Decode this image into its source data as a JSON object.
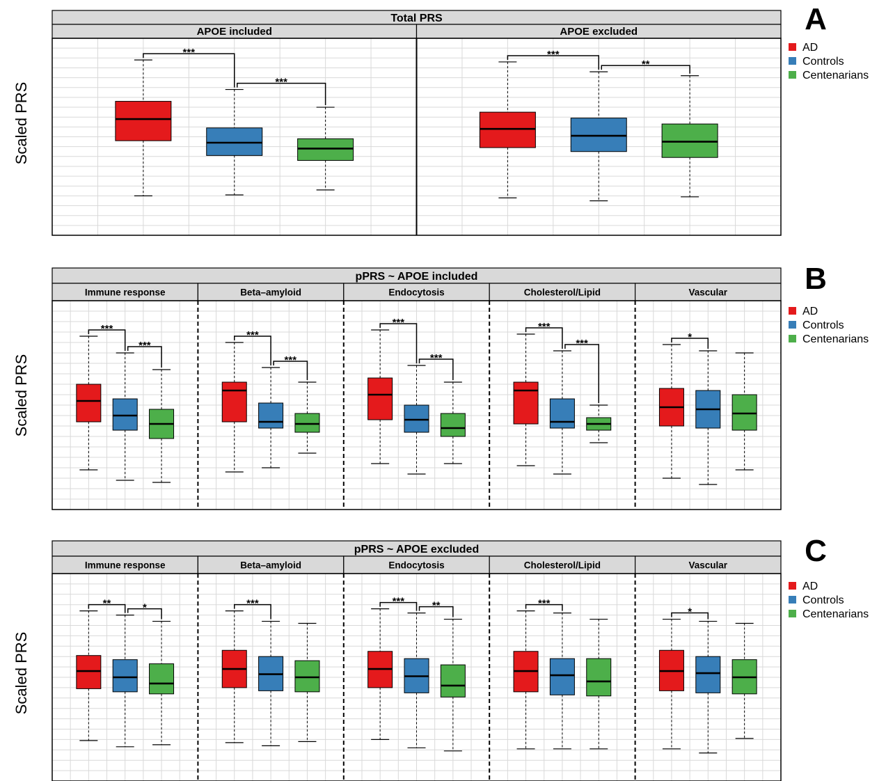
{
  "colors": {
    "AD": "#e41a1c",
    "Controls": "#377eb8",
    "Centenarians": "#4daf4a",
    "strip_bg": "#d9d9d9",
    "grid": "#d9d9d9"
  },
  "legend": [
    "AD",
    "Controls",
    "Centenarians"
  ],
  "chart_data": [
    {
      "type": "box",
      "panel_letter": "A",
      "title": "Total PRS",
      "ylabel": "Scaled PRS",
      "ylim": [
        0,
        100
      ],
      "grid": true,
      "facet_divider": "solid",
      "legend_position": "right",
      "groups": [
        "AD",
        "Controls",
        "Centenarians"
      ],
      "facets": [
        {
          "label": "APOE included",
          "boxes": [
            {
              "group": "AD",
              "lower_whisker": 20,
              "q1": 48,
              "median": 59,
              "q3": 68,
              "upper_whisker": 89
            },
            {
              "group": "Controls",
              "lower_whisker": 20.5,
              "q1": 40.5,
              "median": 47,
              "q3": 54.5,
              "upper_whisker": 74
            },
            {
              "group": "Centenarians",
              "lower_whisker": 23,
              "q1": 38,
              "median": 44,
              "q3": 49,
              "upper_whisker": 65
            }
          ],
          "comparisons": [
            {
              "from": 0,
              "to": 1,
              "label": "***"
            },
            {
              "from": 1,
              "to": 2,
              "label": "***"
            }
          ]
        },
        {
          "label": "APOE excluded",
          "boxes": [
            {
              "group": "AD",
              "lower_whisker": 19,
              "q1": 44.5,
              "median": 54,
              "q3": 62.5,
              "upper_whisker": 88
            },
            {
              "group": "Controls",
              "lower_whisker": 17.5,
              "q1": 42.5,
              "median": 50.5,
              "q3": 59.5,
              "upper_whisker": 83
            },
            {
              "group": "Centenarians",
              "lower_whisker": 19.5,
              "q1": 39.5,
              "median": 47.5,
              "q3": 56.5,
              "upper_whisker": 81
            }
          ],
          "comparisons": [
            {
              "from": 0,
              "to": 1,
              "label": "***"
            },
            {
              "from": 1,
              "to": 2,
              "label": "**"
            }
          ]
        }
      ]
    },
    {
      "type": "box",
      "panel_letter": "B",
      "title": "pPRS ~ APOE included",
      "ylabel": "Scaled PRS",
      "ylim": [
        0,
        100
      ],
      "grid": true,
      "facet_divider": "dashed",
      "legend_position": "right",
      "groups": [
        "AD",
        "Controls",
        "Centenarians"
      ],
      "facets": [
        {
          "label": "Immune response",
          "boxes": [
            {
              "group": "AD",
              "lower_whisker": 19,
              "q1": 42,
              "median": 52,
              "q3": 60,
              "upper_whisker": 83
            },
            {
              "group": "Controls",
              "lower_whisker": 14,
              "q1": 38,
              "median": 45,
              "q3": 53,
              "upper_whisker": 75
            },
            {
              "group": "Centenarians",
              "lower_whisker": 13,
              "q1": 34,
              "median": 41,
              "q3": 48,
              "upper_whisker": 67
            }
          ],
          "comparisons": [
            {
              "from": 0,
              "to": 1,
              "label": "***"
            },
            {
              "from": 1,
              "to": 2,
              "label": "***"
            }
          ]
        },
        {
          "label": "Beta–amyloid",
          "boxes": [
            {
              "group": "AD",
              "lower_whisker": 18,
              "q1": 42,
              "median": 57,
              "q3": 61,
              "upper_whisker": 80
            },
            {
              "group": "Controls",
              "lower_whisker": 20,
              "q1": 39,
              "median": 42,
              "q3": 51,
              "upper_whisker": 68
            },
            {
              "group": "Centenarians",
              "lower_whisker": 27,
              "q1": 37,
              "median": 41,
              "q3": 46,
              "upper_whisker": 61
            }
          ],
          "comparisons": [
            {
              "from": 0,
              "to": 1,
              "label": "***"
            },
            {
              "from": 1,
              "to": 2,
              "label": "***"
            }
          ]
        },
        {
          "label": "Endocytosis",
          "boxes": [
            {
              "group": "AD",
              "lower_whisker": 22,
              "q1": 43,
              "median": 55,
              "q3": 63,
              "upper_whisker": 86
            },
            {
              "group": "Controls",
              "lower_whisker": 17,
              "q1": 37,
              "median": 43,
              "q3": 50,
              "upper_whisker": 69
            },
            {
              "group": "Centenarians",
              "lower_whisker": 22,
              "q1": 35,
              "median": 39,
              "q3": 46,
              "upper_whisker": 61
            }
          ],
          "comparisons": [
            {
              "from": 0,
              "to": 1,
              "label": "***"
            },
            {
              "from": 1,
              "to": 2,
              "label": "***"
            }
          ]
        },
        {
          "label": "Cholesterol/Lipid",
          "boxes": [
            {
              "group": "AD",
              "lower_whisker": 21,
              "q1": 41,
              "median": 57,
              "q3": 61,
              "upper_whisker": 84
            },
            {
              "group": "Controls",
              "lower_whisker": 17,
              "q1": 39,
              "median": 42,
              "q3": 53,
              "upper_whisker": 76
            },
            {
              "group": "Centenarians",
              "lower_whisker": 32,
              "q1": 38,
              "median": 41,
              "q3": 44,
              "upper_whisker": 50
            }
          ],
          "comparisons": [
            {
              "from": 0,
              "to": 1,
              "label": "***"
            },
            {
              "from": 1,
              "to": 2,
              "label": "***"
            }
          ]
        },
        {
          "label": "Vascular",
          "boxes": [
            {
              "group": "AD",
              "lower_whisker": 15,
              "q1": 40,
              "median": 49,
              "q3": 58,
              "upper_whisker": 79
            },
            {
              "group": "Controls",
              "lower_whisker": 12,
              "q1": 39,
              "median": 48,
              "q3": 57,
              "upper_whisker": 76
            },
            {
              "group": "Centenarians",
              "lower_whisker": 19,
              "q1": 38,
              "median": 46,
              "q3": 55,
              "upper_whisker": 75
            }
          ],
          "comparisons": [
            {
              "from": 0,
              "to": 1,
              "label": "*"
            }
          ]
        }
      ]
    },
    {
      "type": "box",
      "panel_letter": "C",
      "title": "pPRS ~ APOE excluded",
      "ylabel": "Scaled PRS",
      "ylim": [
        0,
        100
      ],
      "grid": true,
      "facet_divider": "dashed",
      "legend_position": "right",
      "groups": [
        "AD",
        "Controls",
        "Centenarians"
      ],
      "facets": [
        {
          "label": "Immune response",
          "boxes": [
            {
              "group": "AD",
              "lower_whisker": 19.5,
              "q1": 44.5,
              "median": 53,
              "q3": 60.5,
              "upper_whisker": 82
            },
            {
              "group": "Controls",
              "lower_whisker": 16.5,
              "q1": 43,
              "median": 50,
              "q3": 58.5,
              "upper_whisker": 80
            },
            {
              "group": "Centenarians",
              "lower_whisker": 17.5,
              "q1": 42,
              "median": 47,
              "q3": 56.5,
              "upper_whisker": 77
            }
          ],
          "comparisons": [
            {
              "from": 0,
              "to": 1,
              "label": "**"
            },
            {
              "from": 1,
              "to": 2,
              "label": "*"
            }
          ]
        },
        {
          "label": "Beta–amyloid",
          "boxes": [
            {
              "group": "AD",
              "lower_whisker": 18.5,
              "q1": 45,
              "median": 54,
              "q3": 63,
              "upper_whisker": 82
            },
            {
              "group": "Controls",
              "lower_whisker": 17,
              "q1": 43.5,
              "median": 51.5,
              "q3": 60,
              "upper_whisker": 77
            },
            {
              "group": "Centenarians",
              "lower_whisker": 19,
              "q1": 43,
              "median": 50,
              "q3": 58,
              "upper_whisker": 76
            }
          ],
          "comparisons": [
            {
              "from": 0,
              "to": 1,
              "label": "***"
            }
          ]
        },
        {
          "label": "Endocytosis",
          "boxes": [
            {
              "group": "AD",
              "lower_whisker": 20,
              "q1": 45,
              "median": 54,
              "q3": 62.5,
              "upper_whisker": 83
            },
            {
              "group": "Controls",
              "lower_whisker": 16,
              "q1": 42.5,
              "median": 50.5,
              "q3": 59,
              "upper_whisker": 81
            },
            {
              "group": "Centenarians",
              "lower_whisker": 14.5,
              "q1": 40.5,
              "median": 46,
              "q3": 56,
              "upper_whisker": 78
            }
          ],
          "comparisons": [
            {
              "from": 0,
              "to": 1,
              "label": "***"
            },
            {
              "from": 1,
              "to": 2,
              "label": "**"
            }
          ]
        },
        {
          "label": "Cholesterol/Lipid",
          "boxes": [
            {
              "group": "AD",
              "lower_whisker": 15.5,
              "q1": 43,
              "median": 53,
              "q3": 62.5,
              "upper_whisker": 82
            },
            {
              "group": "Controls",
              "lower_whisker": 15.5,
              "q1": 41.5,
              "median": 51,
              "q3": 59,
              "upper_whisker": 81
            },
            {
              "group": "Centenarians",
              "lower_whisker": 15.5,
              "q1": 41,
              "median": 48,
              "q3": 59,
              "upper_whisker": 78
            }
          ],
          "comparisons": [
            {
              "from": 0,
              "to": 1,
              "label": "***"
            }
          ]
        },
        {
          "label": "Vascular",
          "boxes": [
            {
              "group": "AD",
              "lower_whisker": 15.5,
              "q1": 43.5,
              "median": 53,
              "q3": 63,
              "upper_whisker": 78
            },
            {
              "group": "Controls",
              "lower_whisker": 13.5,
              "q1": 42.5,
              "median": 52,
              "q3": 60,
              "upper_whisker": 77
            },
            {
              "group": "Centenarians",
              "lower_whisker": 20.5,
              "q1": 42,
              "median": 50,
              "q3": 58.5,
              "upper_whisker": 76
            }
          ],
          "comparisons": [
            {
              "from": 0,
              "to": 1,
              "label": "*"
            }
          ]
        }
      ]
    }
  ]
}
